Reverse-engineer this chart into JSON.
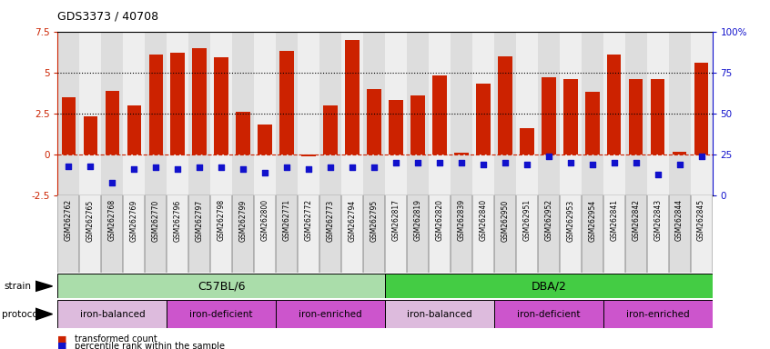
{
  "title": "GDS3373 / 40708",
  "samples": [
    "GSM262762",
    "GSM262765",
    "GSM262768",
    "GSM262769",
    "GSM262770",
    "GSM262796",
    "GSM262797",
    "GSM262798",
    "GSM262799",
    "GSM262800",
    "GSM262771",
    "GSM262772",
    "GSM262773",
    "GSM262794",
    "GSM262795",
    "GSM262817",
    "GSM262819",
    "GSM262820",
    "GSM262839",
    "GSM262840",
    "GSM262950",
    "GSM262951",
    "GSM262952",
    "GSM262953",
    "GSM262954",
    "GSM262841",
    "GSM262842",
    "GSM262843",
    "GSM262844",
    "GSM262845"
  ],
  "bar_values": [
    3.5,
    2.3,
    3.9,
    3.0,
    6.1,
    6.2,
    6.5,
    5.9,
    2.6,
    1.8,
    6.3,
    -0.1,
    3.0,
    7.0,
    4.0,
    3.3,
    3.6,
    4.8,
    0.1,
    4.3,
    6.0,
    1.6,
    4.7,
    4.6,
    3.8,
    6.1,
    4.6,
    4.6,
    0.15,
    5.6
  ],
  "percentile_values": [
    18,
    18,
    8,
    16,
    17,
    16,
    17,
    17,
    16,
    14,
    17,
    16,
    17,
    17,
    17,
    20,
    20,
    20,
    20,
    19,
    20,
    19,
    24,
    20,
    19,
    20,
    20,
    13,
    19,
    24
  ],
  "ylim_left": [
    -2.5,
    7.5
  ],
  "ylim_right": [
    0,
    100
  ],
  "yticks_left": [
    -2.5,
    0,
    2.5,
    5.0,
    7.5
  ],
  "yticks_right": [
    0,
    25,
    50,
    75,
    100
  ],
  "ytick_labels_right": [
    "0",
    "25",
    "50",
    "75",
    "100%"
  ],
  "hlines": [
    2.5,
    5.0
  ],
  "bar_color": "#cc2200",
  "dot_color": "#1111cc",
  "zero_line_color": "#cc2200",
  "strain_groups": [
    {
      "label": "C57BL/6",
      "start": 0,
      "end": 15,
      "color": "#aaddaa"
    },
    {
      "label": "DBA/2",
      "start": 15,
      "end": 30,
      "color": "#44cc44"
    }
  ],
  "protocol_groups": [
    {
      "label": "iron-balanced",
      "start": 0,
      "end": 5,
      "color": "#ddbbdd"
    },
    {
      "label": "iron-deficient",
      "start": 5,
      "end": 10,
      "color": "#cc55cc"
    },
    {
      "label": "iron-enriched",
      "start": 10,
      "end": 15,
      "color": "#cc55cc"
    },
    {
      "label": "iron-balanced",
      "start": 15,
      "end": 20,
      "color": "#ddbbdd"
    },
    {
      "label": "iron-deficient",
      "start": 20,
      "end": 25,
      "color": "#cc55cc"
    },
    {
      "label": "iron-enriched",
      "start": 25,
      "end": 30,
      "color": "#cc55cc"
    }
  ],
  "col_bg_even": "#dddddd",
  "col_bg_odd": "#eeeeee"
}
